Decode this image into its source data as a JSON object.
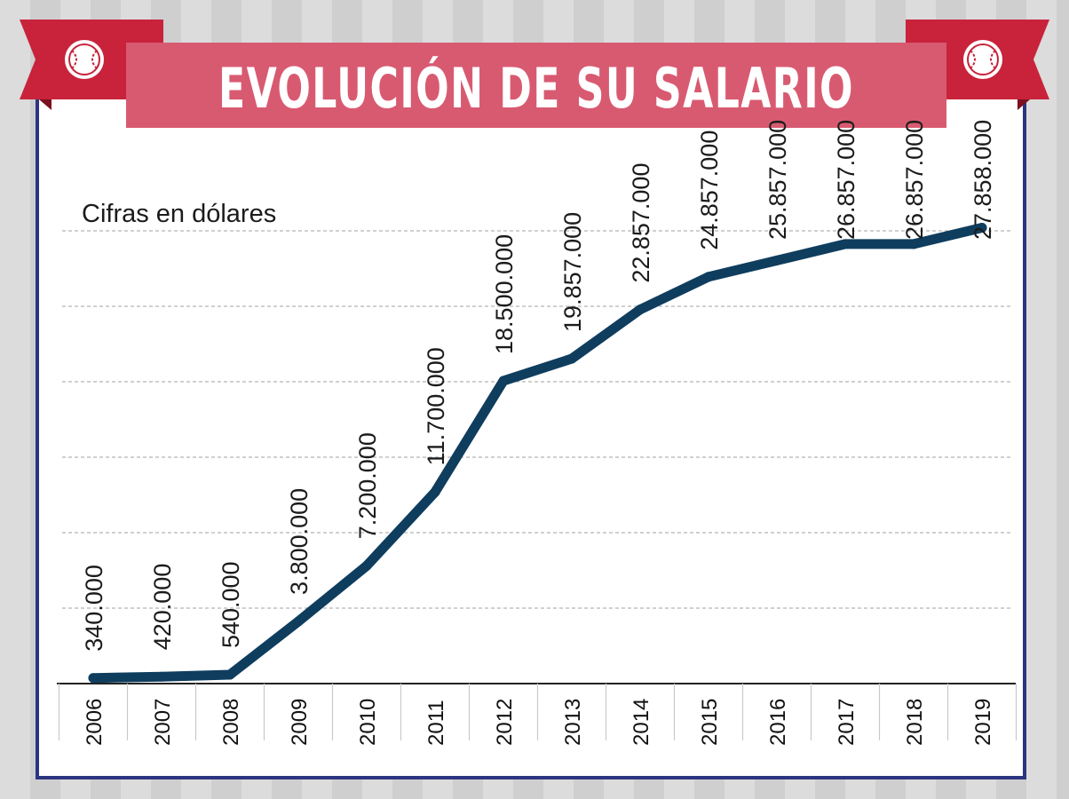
{
  "header": {
    "title": "EVOLUCIÓN DE SU SALARIO",
    "left_icon": "baseball-icon",
    "right_icon": "baseball-icon"
  },
  "colors": {
    "banner": "#d85a71",
    "ribbon": "#c8233b",
    "frame": "#2c3580",
    "line": "#0f3d5e"
  },
  "chart_data": {
    "type": "line",
    "title": "EVOLUCIÓN DE SU SALARIO",
    "subtitle": "Cifras en dólares",
    "xlabel": "",
    "ylabel": "",
    "ylim": [
      0,
      30000000
    ],
    "grid": true,
    "categories": [
      "2006",
      "2007",
      "2008",
      "2009",
      "2010",
      "2011",
      "2012",
      "2013",
      "2014",
      "2015",
      "2016",
      "2017",
      "2018",
      "2019"
    ],
    "series": [
      {
        "name": "Salario",
        "values": [
          340000,
          420000,
          540000,
          3800000,
          7200000,
          11700000,
          18500000,
          19857000,
          22857000,
          24857000,
          25857000,
          26857000,
          26857000,
          27858000
        ],
        "labels": [
          "340.000",
          "420.000",
          "540.000",
          "3.800.000",
          "7.200.000",
          "11.700.000",
          "18.500.000",
          "19.857.000",
          "22.857.000",
          "24.857.000",
          "25.857.000",
          "26.857.000",
          "26.857.000",
          "27.858.000"
        ]
      }
    ]
  }
}
